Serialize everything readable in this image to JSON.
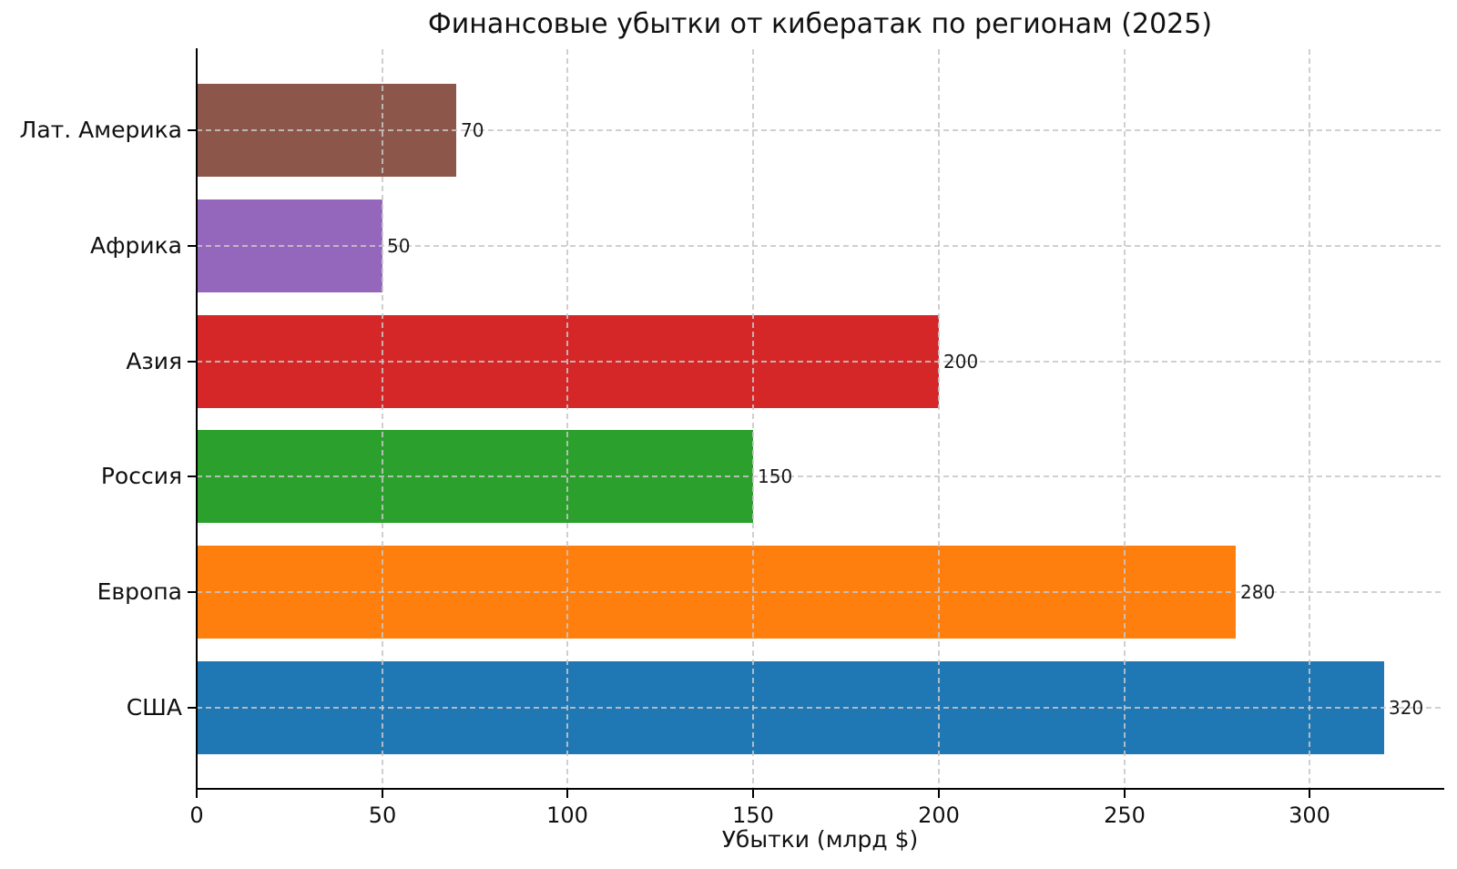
{
  "chart_data": {
    "type": "bar",
    "orientation": "horizontal",
    "title": "Финансовые убытки от кибератак по регионам (2025)",
    "xlabel": "Убытки (млрд $)",
    "ylabel": "",
    "row_order": "top_to_bottom",
    "categories": [
      "Лат. Америка",
      "Африка",
      "Азия",
      "Россия",
      "Европа",
      "США"
    ],
    "values": [
      70,
      50,
      200,
      150,
      280,
      320
    ],
    "value_labels": [
      "70",
      "50",
      "200",
      "150",
      "280",
      "320"
    ],
    "bar_colors": [
      "#8c564b",
      "#9467bd",
      "#d62728",
      "#2ca02c",
      "#ff7f0e",
      "#1f77b4"
    ],
    "x_tick_values": [
      0,
      50,
      100,
      150,
      200,
      250,
      300
    ],
    "x_tick_labels": [
      "0",
      "50",
      "100",
      "150",
      "200",
      "250",
      "300"
    ],
    "xlim": [
      0,
      336
    ],
    "grid": {
      "linestyle": "dashed",
      "color": "#c7c7c7",
      "drawn_over_bars": true
    },
    "legend": "none",
    "background": "#ffffff",
    "axis_color": "#000000"
  }
}
